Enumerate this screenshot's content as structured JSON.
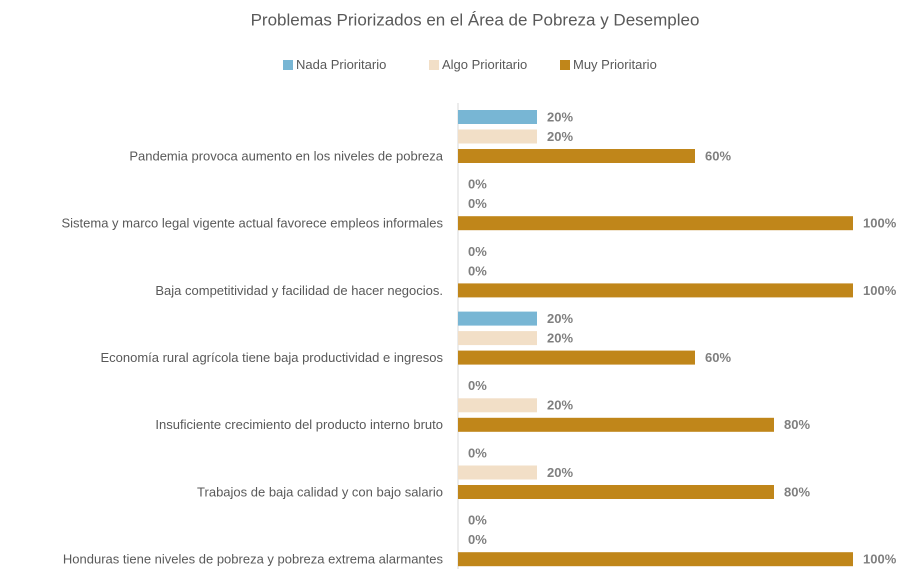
{
  "chart_data": {
    "type": "barh",
    "title": "Problemas Priorizados en el Área de Pobreza y Desempleo",
    "categories": [
      "Pandemia provoca aumento en los niveles de pobreza",
      "Sistema y marco legal vigente actual favorece empleos informales",
      "Baja competitividad y facilidad de hacer negocios.",
      "Economía rural agrícola tiene baja productividad e ingresos",
      "Insuficiente crecimiento del producto interno bruto",
      "Trabajos de baja calidad y con bajo salario",
      "Honduras tiene niveles de pobreza y pobreza extrema alarmantes"
    ],
    "series": [
      {
        "name": "Nada Prioritario",
        "color": "#78b6d4",
        "values": [
          20,
          0,
          0,
          20,
          0,
          0,
          0
        ],
        "value_labels": [
          "20%",
          "0%",
          "0%",
          "20%",
          "0%",
          "0%",
          "0%"
        ]
      },
      {
        "name": "Algo Prioritario",
        "color": "#f2dfc7",
        "values": [
          20,
          0,
          0,
          20,
          20,
          20,
          0
        ],
        "value_labels": [
          "20%",
          "0%",
          "0%",
          "20%",
          "20%",
          "20%",
          "0%"
        ]
      },
      {
        "name": "Muy Prioritario",
        "color": "#c0861a",
        "values": [
          60,
          100,
          100,
          60,
          80,
          80,
          100
        ],
        "value_labels": [
          "60%",
          "100%",
          "100%",
          "60%",
          "80%",
          "80%",
          "100%"
        ]
      }
    ],
    "xlim": [
      0,
      100
    ]
  }
}
